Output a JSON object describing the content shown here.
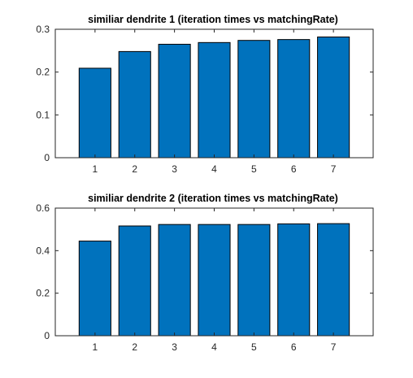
{
  "figure": {
    "background": "#ffffff"
  },
  "chart_data": [
    {
      "type": "bar",
      "title": "similiar dendrite 1 (iteration times vs matchingRate)",
      "xlabel": "",
      "ylabel": "",
      "categories": [
        "1",
        "2",
        "3",
        "4",
        "5",
        "6",
        "7"
      ],
      "values": [
        0.209,
        0.248,
        0.265,
        0.269,
        0.274,
        0.276,
        0.282
      ],
      "ylim": [
        0,
        0.3
      ],
      "yticks": [
        0,
        0.1,
        0.2,
        0.3
      ],
      "ytick_labels": [
        "0",
        "0.1",
        "0.2",
        "0.3"
      ],
      "xlim": [
        0,
        8
      ],
      "bar_color": "#0072BD",
      "grid": false
    },
    {
      "type": "bar",
      "title": "similiar dendrite 2 (iteration times vs matchingRate)",
      "xlabel": "",
      "ylabel": "",
      "categories": [
        "1",
        "2",
        "3",
        "4",
        "5",
        "6",
        "7"
      ],
      "values": [
        0.445,
        0.516,
        0.523,
        0.523,
        0.523,
        0.526,
        0.527
      ],
      "ylim": [
        0,
        0.6
      ],
      "yticks": [
        0,
        0.2,
        0.4,
        0.6
      ],
      "ytick_labels": [
        "0",
        "0.2",
        "0.4",
        "0.6"
      ],
      "xlim": [
        0,
        8
      ],
      "bar_color": "#0072BD",
      "grid": false
    }
  ]
}
